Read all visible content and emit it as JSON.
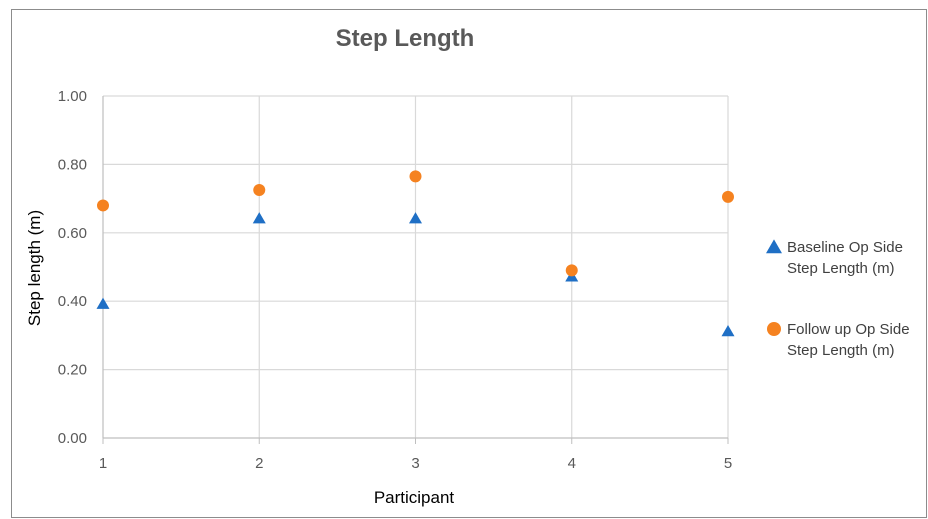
{
  "chart_data": {
    "type": "scatter",
    "title": "Step Length",
    "xlabel": "Participant",
    "ylabel": "Step length (m)",
    "x": [
      1,
      2,
      3,
      4,
      5
    ],
    "xlim": [
      1,
      5
    ],
    "ylim": [
      0,
      1
    ],
    "x_tick_labels": [
      "1",
      "2",
      "3",
      "4",
      "5"
    ],
    "y_tick_labels": [
      "0.00",
      "0.20",
      "0.40",
      "0.60",
      "0.80",
      "1.00"
    ],
    "y_ticks": [
      0,
      0.2,
      0.4,
      0.6,
      0.8,
      1.0
    ],
    "grid": true,
    "legend_position": "right",
    "series": [
      {
        "name_lines": [
          "Baseline Op Side",
          "Step Length (m)"
        ],
        "marker": "triangle",
        "color": "#1f6fc5",
        "values": [
          0.39,
          0.64,
          0.64,
          0.47,
          0.31
        ]
      },
      {
        "name_lines": [
          "Follow up Op Side",
          "Step Length (m)"
        ],
        "marker": "circle",
        "color": "#f58220",
        "values": [
          0.68,
          0.725,
          0.765,
          0.49,
          0.705
        ]
      }
    ]
  }
}
